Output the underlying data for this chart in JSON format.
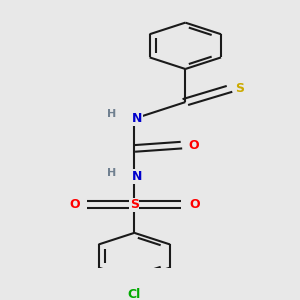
{
  "bg_color": "#e8e8e8",
  "bond_color": "#1a1a1a",
  "bond_width": 1.5,
  "atom_colors": {
    "N": "#0000cc",
    "O": "#ff0000",
    "S_thio": "#ccaa00",
    "S_sulfon": "#ff0000",
    "Cl": "#00aa00",
    "H": "#708090",
    "C": "#1a1a1a"
  },
  "figsize": [
    3.0,
    3.0
  ],
  "dpi": 100,
  "xlim": [
    -2.5,
    2.5
  ],
  "ylim": [
    -4.2,
    3.8
  ]
}
